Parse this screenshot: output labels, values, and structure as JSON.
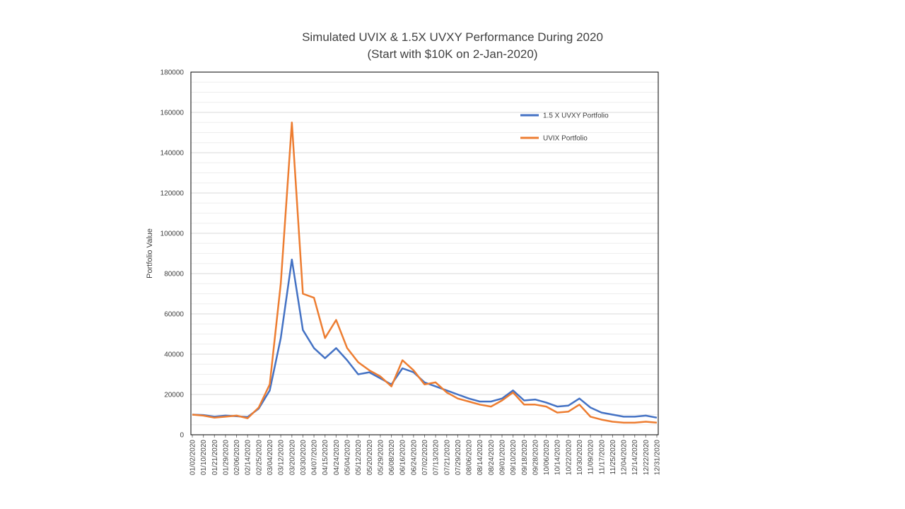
{
  "chart_data": {
    "type": "line",
    "title": "Simulated UVIX & 1.5X UVXY Performance During 2020",
    "subtitle": "(Start with $10K on 2-Jan-2020)",
    "xlabel": "",
    "ylabel": "Portfolio Value",
    "ylim": [
      0,
      180000
    ],
    "yticks": [
      "0",
      "20000",
      "40000",
      "60000",
      "80000",
      "100000",
      "120000",
      "140000",
      "160000",
      "180000"
    ],
    "grid": true,
    "legend_position": "top-right",
    "x": [
      "01/02/2020",
      "01/10/2020",
      "01/21/2020",
      "01/29/2020",
      "02/06/2020",
      "02/14/2020",
      "02/25/2020",
      "03/04/2020",
      "03/12/2020",
      "03/20/2020",
      "03/30/2020",
      "04/07/2020",
      "04/15/2020",
      "04/24/2020",
      "05/04/2020",
      "05/12/2020",
      "05/20/2020",
      "05/29/2020",
      "06/08/2020",
      "06/16/2020",
      "06/24/2020",
      "07/02/2020",
      "07/13/2020",
      "07/21/2020",
      "07/29/2020",
      "08/06/2020",
      "08/14/2020",
      "08/24/2020",
      "09/01/2020",
      "09/10/2020",
      "09/18/2020",
      "09/28/2020",
      "10/06/2020",
      "10/14/2020",
      "10/22/2020",
      "10/30/2020",
      "11/09/2020",
      "11/17/2020",
      "11/25/2020",
      "12/04/2020",
      "12/14/2020",
      "12/22/2020",
      "12/31/2020"
    ],
    "series": [
      {
        "name": "1.5 X UVXY Portfolio",
        "color": "#4472c4",
        "values": [
          10000,
          9800,
          9000,
          9500,
          9200,
          8800,
          13000,
          22000,
          48000,
          87000,
          52000,
          43000,
          38000,
          43000,
          37000,
          30000,
          31000,
          28000,
          25000,
          33000,
          31000,
          26000,
          24000,
          22000,
          20000,
          18000,
          16500,
          16500,
          18000,
          22000,
          17000,
          17500,
          16000,
          14000,
          14500,
          18000,
          13500,
          11000,
          10000,
          9000,
          9000,
          9500,
          8500
        ]
      },
      {
        "name": "UVIX Portfolio",
        "color": "#ed7d31",
        "values": [
          10000,
          9500,
          8500,
          9000,
          9500,
          8200,
          13500,
          25000,
          75000,
          155000,
          70000,
          68000,
          48000,
          57000,
          43000,
          36000,
          32000,
          29000,
          24000,
          37000,
          32000,
          25000,
          26000,
          21000,
          18000,
          16500,
          15000,
          14000,
          17000,
          21000,
          15000,
          15000,
          14000,
          11000,
          11500,
          15000,
          9000,
          7500,
          6500,
          6000,
          6000,
          6500,
          6000
        ]
      }
    ]
  }
}
